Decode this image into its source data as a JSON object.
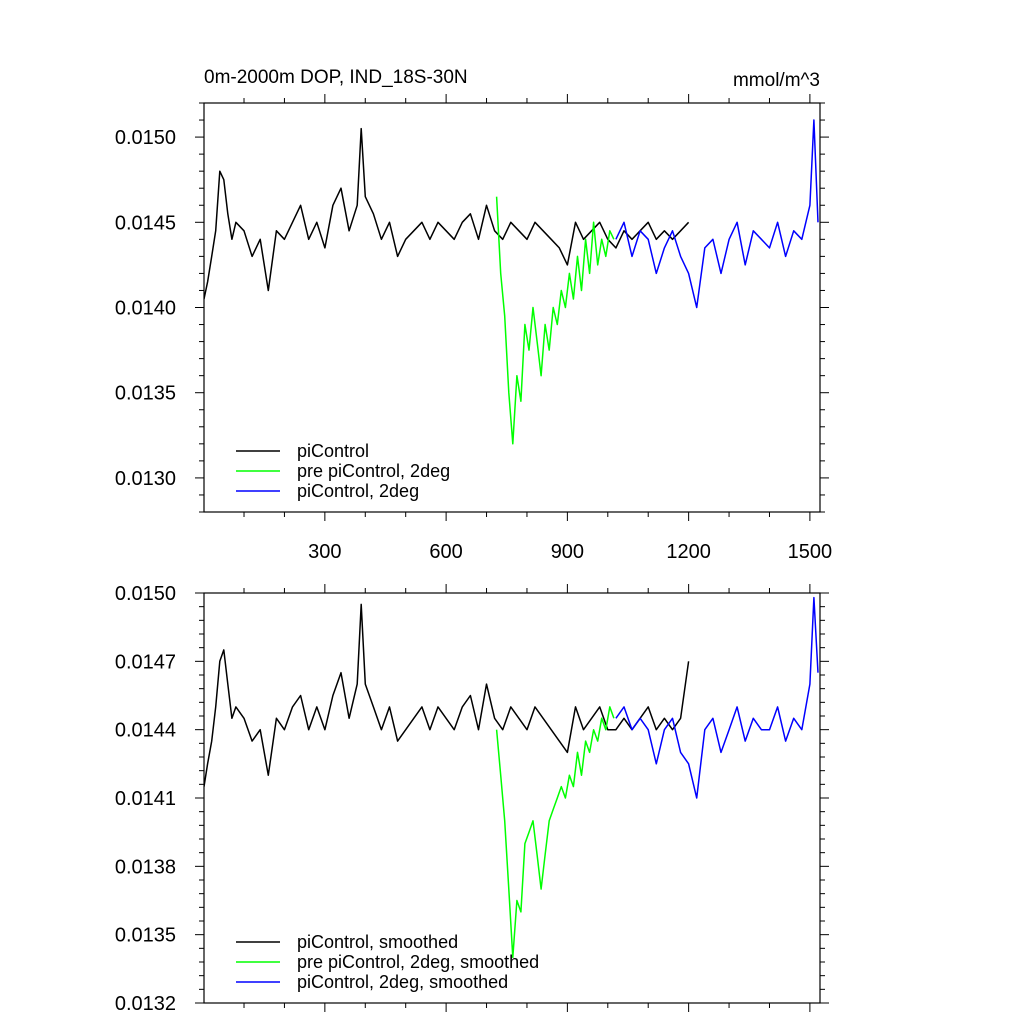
{
  "chart_data": [
    {
      "type": "line",
      "title": "0m-2000m DOP, IND_18S-30N",
      "units": "mmol/m^3",
      "xlim": [
        1,
        1525
      ],
      "ylim": [
        0.0128,
        0.0152
      ],
      "xticks": [
        300,
        600,
        900,
        1200,
        1500
      ],
      "xtick_labels": [
        "300",
        "600",
        "900",
        "1200",
        "1500"
      ],
      "yticks": [
        0.013,
        0.0135,
        0.014,
        0.0145,
        0.015
      ],
      "ytick_labels": [
        "0.0130",
        "0.0135",
        "0.0140",
        "0.0145",
        "0.0150"
      ],
      "legend_position": "bottom-left",
      "series": [
        {
          "name": "piControl",
          "color": "#000000",
          "x": [
            1,
            10,
            20,
            30,
            40,
            50,
            60,
            70,
            80,
            100,
            120,
            140,
            160,
            180,
            200,
            220,
            240,
            260,
            280,
            300,
            320,
            340,
            360,
            380,
            390,
            400,
            420,
            440,
            460,
            480,
            500,
            520,
            540,
            560,
            580,
            600,
            620,
            640,
            660,
            680,
            700,
            720,
            740,
            760,
            780,
            800,
            820,
            840,
            860,
            880,
            900,
            920,
            940,
            960,
            980,
            1000,
            1020,
            1040,
            1060,
            1080,
            1100,
            1120,
            1140,
            1160,
            1180,
            1200
          ],
          "values": [
            0.01405,
            0.01415,
            0.0143,
            0.01445,
            0.0148,
            0.01475,
            0.01455,
            0.0144,
            0.0145,
            0.01445,
            0.0143,
            0.0144,
            0.0141,
            0.01445,
            0.0144,
            0.0145,
            0.0146,
            0.0144,
            0.0145,
            0.01435,
            0.0146,
            0.0147,
            0.01445,
            0.0146,
            0.01505,
            0.01465,
            0.01455,
            0.0144,
            0.0145,
            0.0143,
            0.0144,
            0.01445,
            0.0145,
            0.0144,
            0.0145,
            0.01445,
            0.0144,
            0.0145,
            0.01455,
            0.0144,
            0.0146,
            0.01445,
            0.0144,
            0.0145,
            0.01445,
            0.0144,
            0.0145,
            0.01445,
            0.0144,
            0.01435,
            0.01425,
            0.0145,
            0.0144,
            0.01445,
            0.0145,
            0.0144,
            0.01435,
            0.01445,
            0.0144,
            0.01445,
            0.0145,
            0.0144,
            0.01445,
            0.0144,
            0.01445,
            0.0145
          ]
        },
        {
          "name": "pre piControl, 2deg",
          "color": "#00ff00",
          "x": [
            725,
            735,
            745,
            755,
            765,
            775,
            785,
            795,
            805,
            815,
            825,
            835,
            845,
            855,
            865,
            875,
            885,
            895,
            905,
            915,
            925,
            935,
            945,
            955,
            965,
            975,
            985,
            995,
            1005,
            1015
          ],
          "values": [
            0.01465,
            0.0142,
            0.01395,
            0.0135,
            0.0132,
            0.0136,
            0.01345,
            0.0139,
            0.01375,
            0.014,
            0.0138,
            0.0136,
            0.0139,
            0.01375,
            0.014,
            0.0139,
            0.0141,
            0.014,
            0.0142,
            0.01405,
            0.0143,
            0.0141,
            0.0144,
            0.0142,
            0.0145,
            0.01425,
            0.0144,
            0.0143,
            0.01445,
            0.0144
          ]
        },
        {
          "name": "piControl, 2deg",
          "color": "#0000ff",
          "x": [
            1020,
            1040,
            1060,
            1080,
            1100,
            1120,
            1140,
            1160,
            1180,
            1200,
            1220,
            1240,
            1260,
            1280,
            1300,
            1320,
            1340,
            1360,
            1380,
            1400,
            1420,
            1440,
            1460,
            1480,
            1500,
            1510,
            1520
          ],
          "values": [
            0.0144,
            0.0145,
            0.0143,
            0.01445,
            0.0144,
            0.0142,
            0.01435,
            0.01445,
            0.0143,
            0.0142,
            0.014,
            0.01435,
            0.0144,
            0.0142,
            0.0144,
            0.0145,
            0.01425,
            0.01445,
            0.0144,
            0.01435,
            0.0145,
            0.0143,
            0.01445,
            0.0144,
            0.0146,
            0.0151,
            0.0145
          ]
        }
      ]
    },
    {
      "type": "line",
      "xlim": [
        1,
        1525
      ],
      "ylim": [
        0.0132,
        0.015
      ],
      "yticks": [
        0.0132,
        0.0135,
        0.0138,
        0.0141,
        0.0144,
        0.0147,
        0.015
      ],
      "ytick_labels": [
        "0.0132",
        "0.0135",
        "0.0138",
        "0.0141",
        "0.0144",
        "0.0147",
        "0.0150"
      ],
      "legend_position": "bottom-left",
      "series": [
        {
          "name": "piControl, smoothed",
          "color": "#000000",
          "x": [
            1,
            10,
            20,
            30,
            40,
            50,
            60,
            70,
            80,
            100,
            120,
            140,
            160,
            180,
            200,
            220,
            240,
            260,
            280,
            300,
            320,
            340,
            360,
            380,
            390,
            400,
            420,
            440,
            460,
            480,
            500,
            520,
            540,
            560,
            580,
            600,
            620,
            640,
            660,
            680,
            700,
            720,
            740,
            760,
            780,
            800,
            820,
            840,
            860,
            880,
            900,
            920,
            940,
            960,
            980,
            1000,
            1020,
            1040,
            1060,
            1080,
            1100,
            1120,
            1140,
            1160,
            1180,
            1200
          ],
          "values": [
            0.01415,
            0.01425,
            0.01435,
            0.0145,
            0.0147,
            0.01475,
            0.0146,
            0.01445,
            0.0145,
            0.01445,
            0.01435,
            0.0144,
            0.0142,
            0.01445,
            0.0144,
            0.0145,
            0.01455,
            0.0144,
            0.0145,
            0.0144,
            0.01455,
            0.01465,
            0.01445,
            0.0146,
            0.01495,
            0.0146,
            0.0145,
            0.0144,
            0.0145,
            0.01435,
            0.0144,
            0.01445,
            0.0145,
            0.0144,
            0.0145,
            0.01445,
            0.0144,
            0.0145,
            0.01455,
            0.0144,
            0.0146,
            0.01445,
            0.0144,
            0.0145,
            0.01445,
            0.0144,
            0.0145,
            0.01445,
            0.0144,
            0.01435,
            0.0143,
            0.0145,
            0.0144,
            0.01445,
            0.0145,
            0.0144,
            0.0144,
            0.01445,
            0.0144,
            0.01445,
            0.0145,
            0.0144,
            0.01445,
            0.0144,
            0.01445,
            0.0147
          ]
        },
        {
          "name": "pre piControl, 2deg, smoothed",
          "color": "#00ff00",
          "x": [
            725,
            735,
            745,
            755,
            765,
            775,
            785,
            795,
            805,
            815,
            825,
            835,
            845,
            855,
            865,
            875,
            885,
            895,
            905,
            915,
            925,
            935,
            945,
            955,
            965,
            975,
            985,
            995,
            1005,
            1015
          ],
          "values": [
            0.0144,
            0.0142,
            0.014,
            0.0137,
            0.0134,
            0.01365,
            0.0136,
            0.0139,
            0.01395,
            0.014,
            0.01385,
            0.0137,
            0.01385,
            0.014,
            0.01405,
            0.0141,
            0.01415,
            0.0141,
            0.0142,
            0.01415,
            0.0143,
            0.0142,
            0.01435,
            0.0143,
            0.0144,
            0.01435,
            0.01445,
            0.0144,
            0.0145,
            0.01445
          ]
        },
        {
          "name": "piControl, 2deg, smoothed",
          "color": "#0000ff",
          "x": [
            1020,
            1040,
            1060,
            1080,
            1100,
            1120,
            1140,
            1160,
            1180,
            1200,
            1220,
            1240,
            1260,
            1280,
            1300,
            1320,
            1340,
            1360,
            1380,
            1400,
            1420,
            1440,
            1460,
            1480,
            1500,
            1510,
            1520
          ],
          "values": [
            0.01445,
            0.0145,
            0.0144,
            0.01445,
            0.0144,
            0.01425,
            0.0144,
            0.01445,
            0.0143,
            0.01425,
            0.0141,
            0.0144,
            0.01445,
            0.0143,
            0.0144,
            0.0145,
            0.01435,
            0.01445,
            0.0144,
            0.0144,
            0.0145,
            0.01435,
            0.01445,
            0.0144,
            0.0146,
            0.01498,
            0.01465
          ]
        }
      ]
    }
  ]
}
